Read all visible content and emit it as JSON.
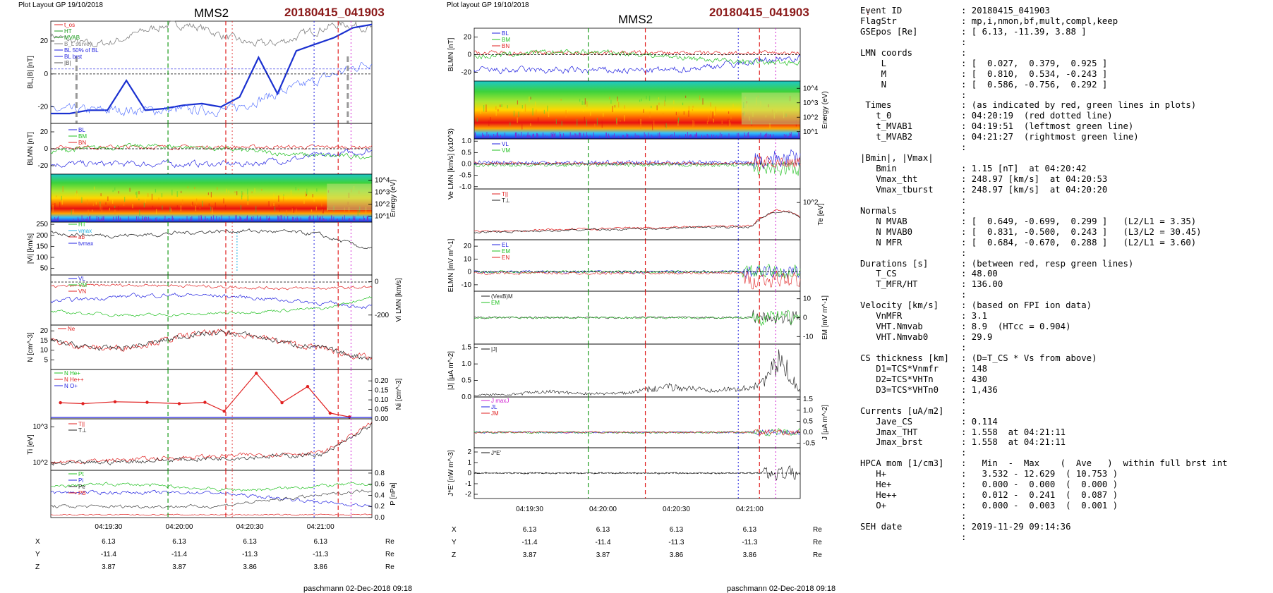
{
  "left_figure": {
    "header": "Plot Layout GP 19/10/2018",
    "spacecraft": "MMS2",
    "event": "20180415_041903",
    "footer": "paschmann 02-Dec-2018 09:18",
    "time_ticks": [
      "04:19:30",
      "04:20:00",
      "04:20:30",
      "04:21:00"
    ],
    "position_table": {
      "rows": [
        {
          "label": "X",
          "values": [
            "6.13",
            "6.13",
            "6.13",
            "6.13"
          ],
          "unit": "Re"
        },
        {
          "label": "Y",
          "values": [
            "-11.4",
            "-11.4",
            "-11.3",
            "-11.3"
          ],
          "unit": "Re"
        },
        {
          "label": "Z",
          "values": [
            "3.87",
            "3.87",
            "3.86",
            "3.86"
          ],
          "unit": "Re"
        }
      ]
    },
    "panels": [
      {
        "id": "bl",
        "ylabel": "BL,|B| [nT]",
        "ticks": [
          "20",
          "0",
          "-20"
        ],
        "legend": [
          "t_os",
          "HT",
          "MVAB",
          "B_L survey",
          "BL 50% of BL",
          "BL brst",
          "|B|"
        ]
      },
      {
        "id": "blmn",
        "ylabel": "BLMN [nT]",
        "ticks": [
          "20",
          "0",
          "-20"
        ],
        "legend": [
          "BL",
          "BM",
          "BN"
        ]
      },
      {
        "id": "spec",
        "ylabel": "Energy (eV)",
        "ticks": [
          "10^4",
          "10^3",
          "10^2",
          "10^1"
        ]
      },
      {
        "id": "vi",
        "ylabel": "|Vi| [km/s]",
        "ticks": [
          "250",
          "200",
          "150",
          "100",
          "50"
        ],
        "legend": [
          "HT",
          "vmax",
          "ab",
          "tvmax"
        ]
      },
      {
        "id": "vlmn",
        "ylabel": "Vi LMN [km/s]",
        "ticks": [
          "0",
          "-200"
        ],
        "legend": [
          "VL",
          "VM",
          "VN"
        ]
      },
      {
        "id": "n",
        "ylabel": "N [cm^-3]",
        "ticks": [
          "20",
          "15",
          "10",
          "5"
        ],
        "legend": [
          "Ne"
        ]
      },
      {
        "id": "ni",
        "ylabel": "Ni [cm^-3]",
        "ticks": [
          "0.20",
          "0.15",
          "0.10",
          "0.05",
          "0.00"
        ],
        "legend": [
          "N He+",
          "N He++",
          "N O+"
        ]
      },
      {
        "id": "ti",
        "ylabel": "Ti [eV]",
        "ticks": [
          "10^3",
          "10^2"
        ],
        "legend": [
          "T||",
          "T⊥"
        ]
      },
      {
        "id": "p",
        "ylabel": "P [nPa]",
        "ticks": [
          "0.8",
          "0.6",
          "0.4",
          "0.2",
          "0.0"
        ],
        "legend": [
          "Pt",
          "Pi",
          "Pe",
          "PB"
        ]
      }
    ]
  },
  "right_figure": {
    "header": "Plot layout GP 19/10/2018",
    "spacecraft": "MMS2",
    "event": "20180415_041903",
    "footer": "paschmann 02-Dec-2018 09:18",
    "time_ticks": [
      "04:19:30",
      "04:20:00",
      "04:20:30",
      "04:21:00"
    ],
    "position_table": {
      "rows": [
        {
          "label": "X",
          "values": [
            "6.13",
            "6.13",
            "6.13",
            "6.13"
          ],
          "unit": "Re"
        },
        {
          "label": "Y",
          "values": [
            "-11.4",
            "-11.4",
            "-11.3",
            "-11.3"
          ],
          "unit": "Re"
        },
        {
          "label": "Z",
          "values": [
            "3.87",
            "3.87",
            "3.86",
            "3.86"
          ],
          "unit": "Re"
        }
      ]
    },
    "panels": [
      {
        "id": "blmn",
        "ylabel": "BLMN [nT]",
        "ticks": [
          "20",
          "0",
          "-20"
        ],
        "legend": [
          "BL",
          "BM",
          "BN"
        ]
      },
      {
        "id": "spec",
        "ylabel": "Energy (eV)",
        "ticks": [
          "10^4",
          "10^3",
          "10^2",
          "10^1"
        ]
      },
      {
        "id": "ve",
        "ylabel": "Ve LMN [km/s] (x10^3)",
        "ticks": [
          "1.0",
          "0.5",
          "0.0",
          "-0.5",
          "-1.0"
        ],
        "legend": [
          "VL",
          "VM"
        ]
      },
      {
        "id": "te",
        "ylabel": "Te [eV]",
        "ticks": [
          "10^2"
        ],
        "legend": [
          "T||",
          "T⊥"
        ]
      },
      {
        "id": "e",
        "ylabel": "ELMN [mV m^-1]",
        "ticks": [
          "20",
          "10",
          "0",
          "-10"
        ],
        "legend": [
          "EL",
          "EM",
          "EN"
        ]
      },
      {
        "id": "em",
        "ylabel": "EM [mV m^-1]",
        "ticks": [
          "10",
          "0",
          "-10"
        ],
        "legend": [
          "(VexB)M",
          "EM"
        ]
      },
      {
        "id": "j",
        "ylabel": "|J| [μA m^-2]",
        "ticks": [
          "1.5",
          "1.0",
          "0.5",
          "0.0"
        ],
        "legend": [
          "|J|"
        ]
      },
      {
        "id": "jlmn",
        "ylabel": "J [μA m^-2]",
        "ticks": [
          "1.5",
          "1.0",
          "0.5",
          "0.0",
          "-0.5"
        ],
        "legend": [
          "J maxJ",
          "JL",
          "JM"
        ]
      },
      {
        "id": "je",
        "ylabel": "J*E' [nW m^-3]",
        "ticks": [
          "2",
          "1",
          "0",
          "-1",
          "-2"
        ],
        "legend": [
          "J*E'"
        ]
      }
    ]
  },
  "summary": [
    {
      "k": "Event ID",
      "v": ": 20180415_041903"
    },
    {
      "k": "FlagStr",
      "v": ": mp,i,nmon,bf,mult,compl,keep"
    },
    {
      "k": "GSEpos [Re]",
      "v": ": [ 6.13, -11.39, 3.88 ]"
    },
    {
      "k": "",
      "v": ":"
    },
    {
      "k": "LMN coords",
      "v": ":"
    },
    {
      "k": "    L",
      "v": ": [  0.027,  0.379,  0.925 ]"
    },
    {
      "k": "    M",
      "v": ": [  0.810,  0.534, -0.243 ]"
    },
    {
      "k": "    N",
      "v": ": [  0.586, -0.756,  0.292 ]"
    },
    {
      "k": "",
      "v": ":"
    },
    {
      "k": " Times",
      "v": ": (as indicated by red, green lines in plots)"
    },
    {
      "k": "   t_0",
      "v": ": 04:20:19  (red dotted line)"
    },
    {
      "k": "   t_MVAB1",
      "v": ": 04:19:51  (leftmost green line)"
    },
    {
      "k": "   t_MVAB2",
      "v": ": 04:21:27  (rightmost green line)"
    },
    {
      "k": "",
      "v": ":"
    },
    {
      "k": "|Bmin|, |Vmax|",
      "v": ""
    },
    {
      "k": "   Bmin",
      "v": ": 1.15 [nT]  at 04:20:42"
    },
    {
      "k": "   Vmax_tht",
      "v": ": 248.97 [km/s]  at 04:20:53"
    },
    {
      "k": "   Vmax_tburst",
      "v": ": 248.97 [km/s]  at 04:20:20"
    },
    {
      "k": "",
      "v": ":"
    },
    {
      "k": "Normals",
      "v": ":"
    },
    {
      "k": "   N MVAB",
      "v": ": [  0.649, -0.699,  0.299 ]   (L2/L1 = 3.35)"
    },
    {
      "k": "   N MVAB0",
      "v": ": [  0.831, -0.500,  0.243 ]   (L3/L2 = 30.45)"
    },
    {
      "k": "   N MFR",
      "v": ": [  0.684, -0.670,  0.288 ]   (L2/L1 = 3.60)"
    },
    {
      "k": "",
      "v": ":"
    },
    {
      "k": "Durations [s]",
      "v": ": (between red, resp green lines)"
    },
    {
      "k": "   T_CS",
      "v": ": 48.00"
    },
    {
      "k": "   T_MFR/HT",
      "v": ": 136.00"
    },
    {
      "k": "",
      "v": ":"
    },
    {
      "k": "Velocity [km/s]",
      "v": ": (based on FPI ion data)"
    },
    {
      "k": "   VnMFR",
      "v": ": 3.1"
    },
    {
      "k": "   VHT.Nmvab",
      "v": ": 8.9  (HTcc = 0.904)"
    },
    {
      "k": "   VHT.Nmvab0",
      "v": ": 29.9"
    },
    {
      "k": "",
      "v": ":"
    },
    {
      "k": "CS thickness [km]",
      "v": ": (D=T_CS * Vs from above)"
    },
    {
      "k": "   D1=TCS*Vnmfr",
      "v": ": 148"
    },
    {
      "k": "   D2=TCS*VHTn",
      "v": ": 430"
    },
    {
      "k": "   D3=TCS*VHTn0",
      "v": ": 1,436"
    },
    {
      "k": "",
      "v": ":"
    },
    {
      "k": "Currents [uA/m2]",
      "v": ":"
    },
    {
      "k": "   Jave_CS",
      "v": ": 0.114"
    },
    {
      "k": "   Jmax_THT",
      "v": ": 1.558  at 04:21:11"
    },
    {
      "k": "   Jmax_brst",
      "v": ": 1.558  at 04:21:11"
    },
    {
      "k": "",
      "v": ":"
    },
    {
      "k": "HPCA mom [1/cm3]",
      "v": ":   Min  -  Max    (  Ave   )  within full brst int"
    },
    {
      "k": "   H+",
      "v": ":   3.532 - 12.629  ( 10.753 )"
    },
    {
      "k": "   He+",
      "v": ":   0.000 -  0.000  (  0.000 )"
    },
    {
      "k": "   He++",
      "v": ":   0.012 -  0.241  (  0.087 )"
    },
    {
      "k": "   O+",
      "v": ":   0.000 -  0.003  (  0.001 )"
    },
    {
      "k": "",
      "v": ":"
    },
    {
      "k": "SEH date",
      "v": ": 2019-11-29 09:14:36"
    },
    {
      "k": "",
      "v": ":"
    }
  ],
  "chart_data": [
    {
      "type": "line",
      "title": "MMS2",
      "subtitle": "20180415_041903",
      "xlabel": "",
      "x_ticks": [
        "04:19:30",
        "04:20:00",
        "04:20:30",
        "04:21:00"
      ],
      "ylabel": "BL,|B| [nT]",
      "ylim": [
        -30,
        32
      ],
      "series": [
        {
          "name": "BL brst",
          "x_s": [
            0,
            10,
            20,
            30,
            40,
            50,
            60,
            70,
            80,
            90,
            100,
            110,
            120,
            130,
            140,
            150,
            160,
            170
          ],
          "values": [
            -24,
            -24,
            -22,
            -22,
            -4,
            -22,
            -21,
            -19,
            -18,
            -20,
            -14,
            10,
            -12,
            14,
            18,
            22,
            28,
            30
          ]
        },
        {
          "name": "|B|",
          "x_s": [
            0,
            10,
            20,
            30,
            40,
            50,
            60,
            70,
            80,
            90,
            100,
            110,
            120,
            130,
            140,
            150,
            160,
            170
          ],
          "values": [
            24,
            24,
            25,
            24,
            14,
            24,
            22,
            22,
            20,
            22,
            16,
            20,
            18,
            20,
            22,
            26,
            30,
            31
          ]
        }
      ]
    },
    {
      "type": "line",
      "title": "MMS2",
      "subtitle": "20180415_041903",
      "x_ticks": [
        "04:19:30",
        "04:20:00",
        "04:20:30",
        "04:21:00"
      ],
      "ylabel": "|J| [μA m^-2]",
      "ylim": [
        0,
        1.6
      ],
      "series": [
        {
          "name": "|J|",
          "x_s": [
            0,
            20,
            40,
            60,
            80,
            100,
            120,
            140,
            150,
            160,
            170
          ],
          "values": [
            0.05,
            0.1,
            0.2,
            0.1,
            0.15,
            0.4,
            0.3,
            0.3,
            0.6,
            1.55,
            0.2
          ]
        }
      ]
    }
  ]
}
